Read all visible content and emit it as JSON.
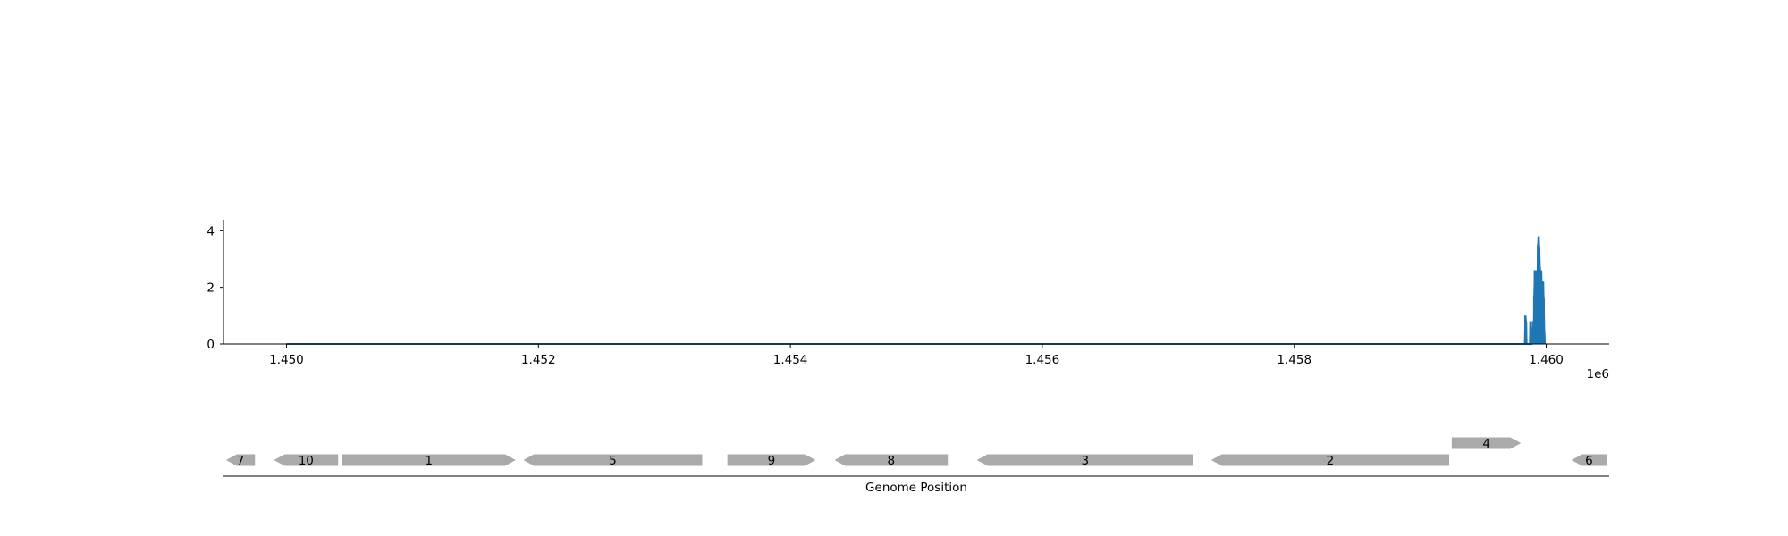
{
  "chart_data": [
    {
      "type": "line",
      "title": "",
      "xlabel": "",
      "ylabel": "",
      "x_offset_label": "1e6",
      "xlim": [
        1449500,
        1460500
      ],
      "ylim": [
        0,
        4.2
      ],
      "xticks": [
        1450000,
        1452000,
        1454000,
        1456000,
        1458000,
        1460000
      ],
      "xtick_labels": [
        "1.450",
        "1.452",
        "1.454",
        "1.456",
        "1.458",
        "1.460"
      ],
      "yticks": [
        0,
        2,
        4
      ],
      "ytick_labels": [
        "0",
        "2",
        "4"
      ],
      "grid": false,
      "color": "#1f77b4",
      "series": [
        {
          "x": [
            1450000,
            1459830,
            1459835,
            1459840,
            1459845,
            1459870,
            1459875,
            1459880,
            1459885,
            1459895,
            1459900,
            1459905,
            1459910,
            1459920,
            1459925,
            1459930,
            1459935,
            1459940,
            1459945,
            1459950,
            1459955,
            1459960,
            1459965,
            1459970,
            1459975,
            1459980,
            1459985,
            1459990
          ],
          "y": [
            0,
            0,
            1.0,
            0.8,
            0,
            0,
            0.8,
            0,
            0,
            0.8,
            0,
            1.7,
            2.6,
            2.4,
            2.6,
            2.2,
            3.5,
            3.8,
            3.4,
            2.7,
            2.2,
            2.6,
            2.0,
            1.6,
            2.2,
            1.6,
            0.4,
            0
          ]
        }
      ]
    },
    {
      "type": "gene-map",
      "xlabel": "Genome Position",
      "genes": [
        {
          "label": "7",
          "start": 1449520,
          "end": 1449750,
          "strand": "-",
          "row": 0
        },
        {
          "label": "10",
          "start": 1449900,
          "end": 1450410,
          "strand": "-",
          "row": 0
        },
        {
          "label": "1",
          "start": 1450440,
          "end": 1451820,
          "strand": "+",
          "row": 0
        },
        {
          "label": "5",
          "start": 1451880,
          "end": 1453300,
          "strand": "-",
          "row": 0
        },
        {
          "label": "9",
          "start": 1453500,
          "end": 1454200,
          "strand": "+",
          "row": 0
        },
        {
          "label": "8",
          "start": 1454350,
          "end": 1455250,
          "strand": "-",
          "row": 0
        },
        {
          "label": "3",
          "start": 1455480,
          "end": 1457200,
          "strand": "-",
          "row": 0
        },
        {
          "label": "2",
          "start": 1457340,
          "end": 1459230,
          "strand": "-",
          "row": 0
        },
        {
          "label": "4",
          "start": 1459250,
          "end": 1459800,
          "strand": "+",
          "row": 1
        },
        {
          "label": "6",
          "start": 1460200,
          "end": 1460480,
          "strand": "-",
          "row": 0
        }
      ],
      "color": "#aaaaaa"
    }
  ]
}
